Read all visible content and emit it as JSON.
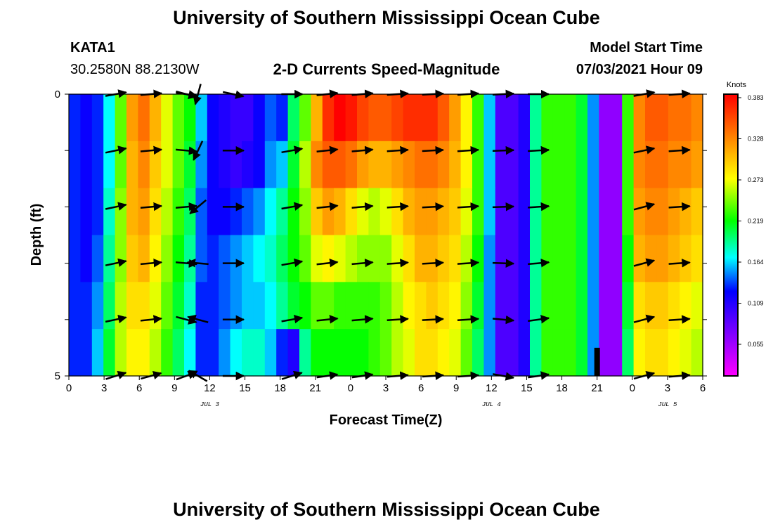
{
  "header": {
    "title_top": "University of Southern Mississippi Ocean Cube",
    "title_bottom": "University of Southern Mississippi Ocean Cube",
    "station_id": "KATA1",
    "station_coords": "30.2580N  88.2130W",
    "plot_title": "2-D Currents Speed-Magnitude",
    "model_start_label": "Model Start Time",
    "model_start_value": "07/03/2021 Hour 09"
  },
  "chart_data": {
    "type": "heatmap",
    "title": "2-D Currents Speed-Magnitude",
    "xlabel": "Forecast Time(Z)",
    "ylabel": "Depth (ft)",
    "x_tick_labels": [
      "0",
      "3",
      "6",
      "9",
      "12",
      "15",
      "18",
      "21",
      "0",
      "3",
      "6",
      "9",
      "12",
      "15",
      "18",
      "21",
      "0",
      "3",
      "6"
    ],
    "x_range_hours": [
      0,
      54
    ],
    "date_labels": [
      {
        "text": "JUL 3",
        "hour": 12
      },
      {
        "text": "JUL 4",
        "hour": 36
      },
      {
        "text": "JUL 5",
        "hour": 51
      }
    ],
    "y_tick_labels": [
      "0",
      "5"
    ],
    "ylim": [
      0,
      5
    ],
    "depth_rows": [
      0,
      1,
      2,
      3,
      4,
      5
    ],
    "colorbar": {
      "label": "Knots",
      "ticks": [
        "0.383",
        "0.328",
        "0.273",
        "0.219",
        "0.164",
        "0.109",
        "0.055"
      ],
      "range": [
        0.0,
        0.38
      ]
    },
    "speed_profile_by_column": [
      [
        0.12,
        0.11,
        0.12,
        0.16,
        0.23,
        0.31,
        0.33,
        0.3,
        0.26,
        0.23,
        0.21,
        0.15,
        0.11,
        0.1,
        0.09,
        0.09,
        0.11,
        0.13,
        0.12,
        0.19,
        0.23,
        0.3,
        0.36,
        0.38,
        0.37,
        0.35,
        0.34,
        0.34,
        0.35,
        0.36,
        0.36,
        0.36,
        0.34,
        0.31,
        0.27,
        0.22,
        0.15,
        0.08,
        0.08,
        0.1,
        0.18,
        0.22,
        0.22,
        0.22,
        0.2,
        0.14,
        0.05,
        0.05,
        0.22,
        0.32,
        0.34,
        0.34,
        0.33,
        0.33,
        0.32
      ],
      [
        0.12,
        0.11,
        0.12,
        0.16,
        0.23,
        0.3,
        0.32,
        0.29,
        0.26,
        0.23,
        0.2,
        0.14,
        0.11,
        0.1,
        0.09,
        0.1,
        0.11,
        0.14,
        0.15,
        0.2,
        0.25,
        0.32,
        0.34,
        0.34,
        0.33,
        0.31,
        0.3,
        0.3,
        0.31,
        0.32,
        0.33,
        0.33,
        0.32,
        0.3,
        0.27,
        0.22,
        0.15,
        0.08,
        0.08,
        0.1,
        0.18,
        0.22,
        0.22,
        0.22,
        0.2,
        0.14,
        0.05,
        0.05,
        0.22,
        0.32,
        0.33,
        0.33,
        0.32,
        0.32,
        0.31
      ],
      [
        0.12,
        0.11,
        0.12,
        0.17,
        0.24,
        0.3,
        0.31,
        0.28,
        0.25,
        0.22,
        0.19,
        0.13,
        0.11,
        0.11,
        0.12,
        0.13,
        0.14,
        0.16,
        0.18,
        0.21,
        0.24,
        0.29,
        0.31,
        0.3,
        0.28,
        0.26,
        0.25,
        0.26,
        0.28,
        0.3,
        0.31,
        0.31,
        0.3,
        0.29,
        0.26,
        0.22,
        0.15,
        0.08,
        0.08,
        0.1,
        0.18,
        0.22,
        0.22,
        0.22,
        0.2,
        0.14,
        0.05,
        0.05,
        0.22,
        0.31,
        0.32,
        0.32,
        0.31,
        0.3,
        0.29
      ],
      [
        0.12,
        0.11,
        0.13,
        0.18,
        0.24,
        0.29,
        0.3,
        0.27,
        0.24,
        0.21,
        0.18,
        0.13,
        0.12,
        0.13,
        0.14,
        0.15,
        0.16,
        0.17,
        0.19,
        0.21,
        0.23,
        0.26,
        0.27,
        0.26,
        0.25,
        0.24,
        0.24,
        0.24,
        0.26,
        0.28,
        0.3,
        0.3,
        0.29,
        0.28,
        0.25,
        0.21,
        0.14,
        0.08,
        0.08,
        0.1,
        0.18,
        0.22,
        0.22,
        0.22,
        0.2,
        0.14,
        0.05,
        0.05,
        0.21,
        0.3,
        0.31,
        0.31,
        0.3,
        0.29,
        0.28
      ],
      [
        0.12,
        0.12,
        0.14,
        0.19,
        0.25,
        0.28,
        0.28,
        0.26,
        0.23,
        0.2,
        0.17,
        0.12,
        0.12,
        0.13,
        0.14,
        0.15,
        0.15,
        0.16,
        0.18,
        0.2,
        0.21,
        0.23,
        0.23,
        0.22,
        0.22,
        0.22,
        0.22,
        0.23,
        0.25,
        0.27,
        0.28,
        0.29,
        0.28,
        0.27,
        0.24,
        0.2,
        0.14,
        0.08,
        0.08,
        0.1,
        0.18,
        0.22,
        0.22,
        0.22,
        0.2,
        0.14,
        0.05,
        0.05,
        0.2,
        0.28,
        0.29,
        0.29,
        0.28,
        0.27,
        0.26
      ],
      [
        0.12,
        0.12,
        0.15,
        0.2,
        0.25,
        0.27,
        0.27,
        0.25,
        0.22,
        0.19,
        0.16,
        0.12,
        0.12,
        0.14,
        0.16,
        0.17,
        0.17,
        0.15,
        0.12,
        0.1,
        0.18,
        0.21,
        0.21,
        0.21,
        0.21,
        0.21,
        0.22,
        0.23,
        0.25,
        0.26,
        0.28,
        0.28,
        0.27,
        0.26,
        0.23,
        0.19,
        0.14,
        0.08,
        0.08,
        0.1,
        0.18,
        0.22,
        0.22,
        0.22,
        0.2,
        0.14,
        0.05,
        0.05,
        0.19,
        0.27,
        0.28,
        0.28,
        0.27,
        0.26,
        0.25
      ]
    ],
    "vector_hours": [
      4,
      7,
      10,
      14,
      19,
      22,
      25,
      28,
      31,
      34,
      37,
      40,
      49,
      52
    ],
    "vector_angles_deg_by_depth": [
      [
        -10,
        -5,
        8,
        12,
        0,
        -6,
        -5,
        -4,
        -3,
        -4,
        -3,
        0,
        -10,
        -4
      ],
      [
        -12,
        -5,
        5,
        0,
        -10,
        -6,
        -5,
        -4,
        -3,
        -4,
        -2,
        -3,
        -12,
        -4
      ],
      [
        -12,
        -5,
        -5,
        0,
        -10,
        -6,
        -5,
        -4,
        -3,
        -4,
        -2,
        -4,
        -15,
        -4
      ],
      [
        -12,
        -5,
        5,
        0,
        -10,
        -6,
        -5,
        -4,
        -3,
        -4,
        2,
        -5,
        -15,
        -4
      ],
      [
        -12,
        -6,
        15,
        0,
        -10,
        -6,
        -5,
        -4,
        -3,
        -4,
        5,
        -8,
        -15,
        -4
      ],
      [
        -18,
        -15,
        -20,
        0,
        -18,
        -8,
        -8,
        -5,
        -4,
        -4,
        10,
        -8,
        -15,
        -5
      ]
    ],
    "extra_vectors": [
      {
        "hour": 11,
        "depth": 0,
        "angle_deg": 105
      },
      {
        "hour": 11,
        "depth": 1,
        "angle_deg": 115
      },
      {
        "hour": 11,
        "depth": 2,
        "angle_deg": 140
      },
      {
        "hour": 11,
        "depth": 3,
        "angle_deg": 185
      },
      {
        "hour": 11,
        "depth": 4,
        "angle_deg": 195
      },
      {
        "hour": 11,
        "depth": 5,
        "angle_deg": 210
      },
      {
        "hour": 10,
        "depth": 0,
        "angle_deg": 15
      }
    ],
    "marker": {
      "hour": 45,
      "depth_from": 4.5,
      "depth_to": 5
    }
  }
}
